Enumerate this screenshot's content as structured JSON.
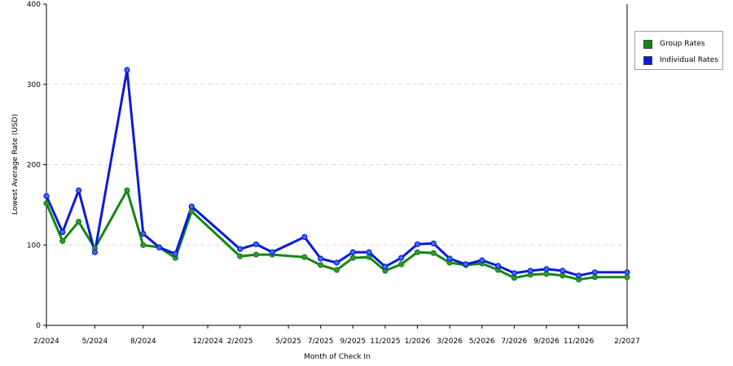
{
  "chart_data": {
    "type": "line",
    "xlabel": "Month of Check In",
    "ylabel": "Lowest Average Rate (USD)",
    "ylim": [
      0,
      400
    ],
    "yticks": [
      0,
      100,
      200,
      300,
      400
    ],
    "grid": true,
    "legend": "right",
    "x_tick_labels": [
      "2/2024",
      "5/2024",
      "8/2024",
      "12/2024",
      "2/2025",
      "5/2025",
      "7/2025",
      "9/2025",
      "11/2025",
      "1/2026",
      "3/2026",
      "5/2026",
      "7/2026",
      "9/2026",
      "11/2026",
      "2/2027"
    ],
    "x": [
      "2/2024",
      "3/2024",
      "4/2024",
      "5/2024",
      "7/2024",
      "8/2024",
      "9/2024",
      "10/2024",
      "11/2024",
      "2/2025",
      "3/2025",
      "4/2025",
      "6/2025",
      "7/2025",
      "8/2025",
      "9/2025",
      "10/2025",
      "11/2025",
      "12/2025",
      "1/2026",
      "2/2026",
      "3/2026",
      "4/2026",
      "5/2026",
      "6/2026",
      "7/2026",
      "8/2026",
      "9/2026",
      "10/2026",
      "11/2026",
      "12/2026",
      "2/2027"
    ],
    "series": [
      {
        "name": "Group Rates",
        "color": "#118811",
        "values": [
          152,
          105,
          129,
          96,
          168,
          100,
          97,
          84,
          142,
          86,
          88,
          88,
          85,
          75,
          69,
          84,
          85,
          68,
          76,
          91,
          90,
          78,
          75,
          77,
          69,
          59,
          63,
          64,
          62,
          57,
          60,
          60
        ]
      },
      {
        "name": "Individual Rates",
        "color": "#0a1bd6",
        "values": [
          161,
          116,
          168,
          91,
          318,
          114,
          97,
          89,
          148,
          95,
          101,
          91,
          110,
          83,
          78,
          91,
          91,
          73,
          84,
          101,
          102,
          83,
          76,
          81,
          74,
          65,
          68,
          70,
          68,
          62,
          66,
          66
        ]
      }
    ]
  }
}
